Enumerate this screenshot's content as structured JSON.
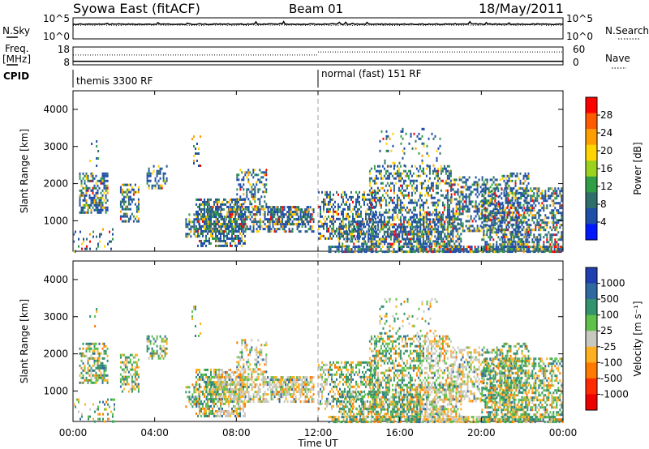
{
  "header": {
    "title": "Syowa East (fitACF)",
    "beam": "Beam 01",
    "date": "18/May/2011"
  },
  "left_labels": {
    "nsky": "N.Sky",
    "freq": "Freq.",
    "mhz": "[MHz]",
    "cpid": "CPID"
  },
  "right_labels": {
    "nsearch": "N.Search",
    "nave": "Nave"
  },
  "noise_panel": {
    "ytick_top": "10^5",
    "ytick_bottom": "10^0",
    "rtick_top": "10^5",
    "rtick_bottom": "10^0",
    "sky_level": 0.3,
    "search_level": 0.35
  },
  "freq_panel": {
    "ytick_top": "18",
    "ytick_bottom": "8",
    "rtick_top": "60",
    "rtick_bottom": "0",
    "freq_level": 0.2,
    "nave_level_first": 0.55,
    "nave_level_second": 0.72
  },
  "cpid": {
    "first": "themis 3300 RF",
    "second": "normal (fast) 151 RF",
    "switch_time_hours": 12.0
  },
  "xaxis": {
    "label": "Time UT",
    "ticks": [
      "00:00",
      "04:00",
      "08:00",
      "12:00",
      "16:00",
      "20:00",
      "00:00"
    ]
  },
  "chart_data": [
    {
      "type": "heatmap",
      "ylabel": "Slant Range [km]",
      "yticks": [
        "4000",
        "3000",
        "2000",
        "1000"
      ],
      "ylim": [
        180,
        4500
      ],
      "xlim": [
        0,
        24
      ],
      "colorbar": {
        "label": "Power [dB]",
        "ticks": [
          "28",
          "24",
          "20",
          "16",
          "12",
          "8",
          "4"
        ],
        "colors": [
          "#ff0000",
          "#ff5a00",
          "#ff9e00",
          "#ffd400",
          "#9ad21e",
          "#2f9e46",
          "#2f6e6a",
          "#1e4ea8",
          "#0018ff"
        ]
      }
    },
    {
      "type": "heatmap",
      "ylabel": "Slant Range [km]",
      "yticks": [
        "4000",
        "3000",
        "2000",
        "1000"
      ],
      "ylim": [
        180,
        4500
      ],
      "xlim": [
        0,
        24
      ],
      "colorbar": {
        "label": "Velocity [m s⁻¹]",
        "ticks": [
          "1000",
          "500",
          "100",
          "25",
          "-25",
          "-100",
          "-500",
          "-1000"
        ],
        "colors": [
          "#1f3fb0",
          "#2e6aa0",
          "#33936c",
          "#5fc04a",
          "#c8c8c0",
          "#ffb020",
          "#ff7a00",
          "#ff2a00",
          "#ee0000"
        ]
      }
    }
  ]
}
